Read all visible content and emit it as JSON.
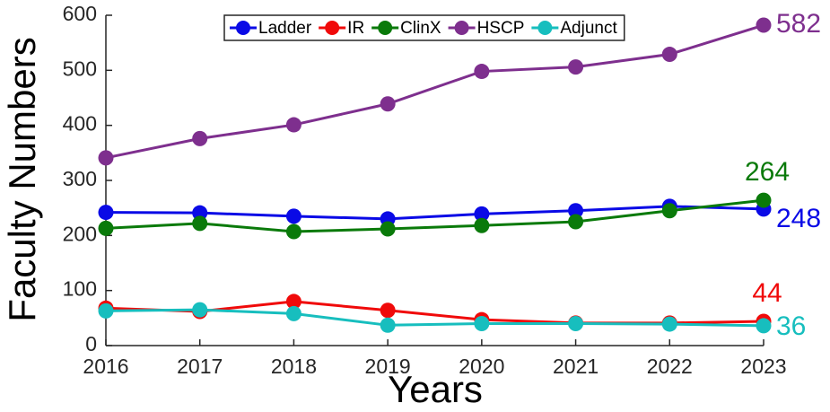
{
  "chart_data": {
    "type": "line",
    "x_label": "Years",
    "y_label": "Faculty Numbers",
    "x": [
      2016,
      2017,
      2018,
      2019,
      2020,
      2021,
      2022,
      2023
    ],
    "series": [
      {
        "name": "Ladder",
        "color": "#0a0ae6",
        "values": [
          242,
          241,
          235,
          230,
          239,
          245,
          253,
          248
        ]
      },
      {
        "name": "IR",
        "color": "#f00a0a",
        "values": [
          68,
          62,
          80,
          64,
          47,
          41,
          41,
          44
        ]
      },
      {
        "name": "ClinX",
        "color": "#0a7a0a",
        "values": [
          213,
          222,
          207,
          212,
          218,
          225,
          245,
          264
        ]
      },
      {
        "name": "HSCP",
        "color": "#7e2f8e",
        "values": [
          341,
          376,
          401,
          439,
          498,
          506,
          529,
          582
        ]
      },
      {
        "name": "Adjunct",
        "color": "#17bebe",
        "values": [
          63,
          65,
          58,
          37,
          40,
          40,
          39,
          36
        ]
      }
    ],
    "xlim": [
      2016,
      2023
    ],
    "xticks": [
      2016,
      2017,
      2018,
      2019,
      2020,
      2021,
      2022,
      2023
    ],
    "ylim": [
      0,
      600
    ],
    "yticks": [
      0,
      100,
      200,
      300,
      400,
      500,
      600
    ],
    "legend": "top"
  }
}
